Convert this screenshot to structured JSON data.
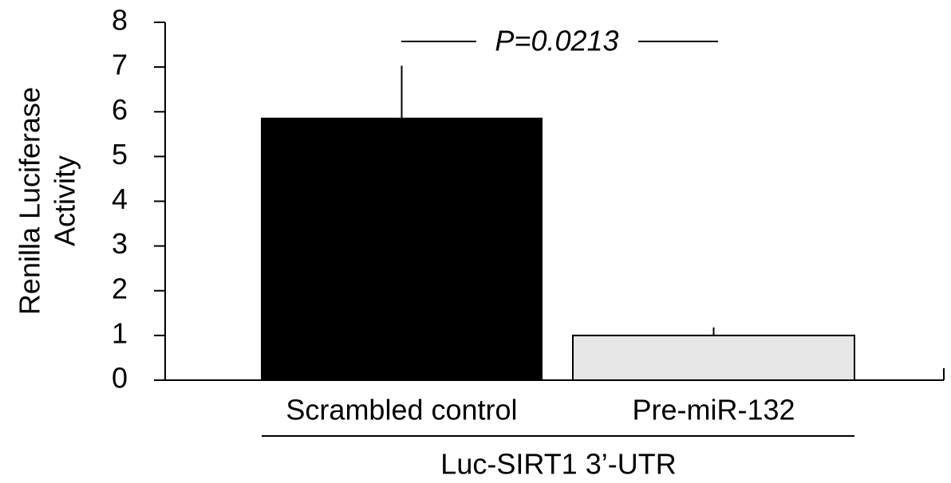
{
  "chart_data": {
    "type": "bar",
    "ylabel": [
      "Renilla Luciferase",
      "Activity"
    ],
    "categories": [
      "Scrambled control",
      "Pre-miR-132"
    ],
    "values": [
      5.85,
      1.0
    ],
    "errors": [
      1.18,
      0.18
    ],
    "colors": [
      "#000000",
      "#e6e6e6"
    ],
    "ylim": [
      0,
      8
    ],
    "yticks": [
      0,
      1,
      2,
      3,
      4,
      5,
      6,
      7,
      8
    ],
    "annotation": "P=0.0213",
    "group_label": "Luc-SIRT1 3’-UTR"
  }
}
